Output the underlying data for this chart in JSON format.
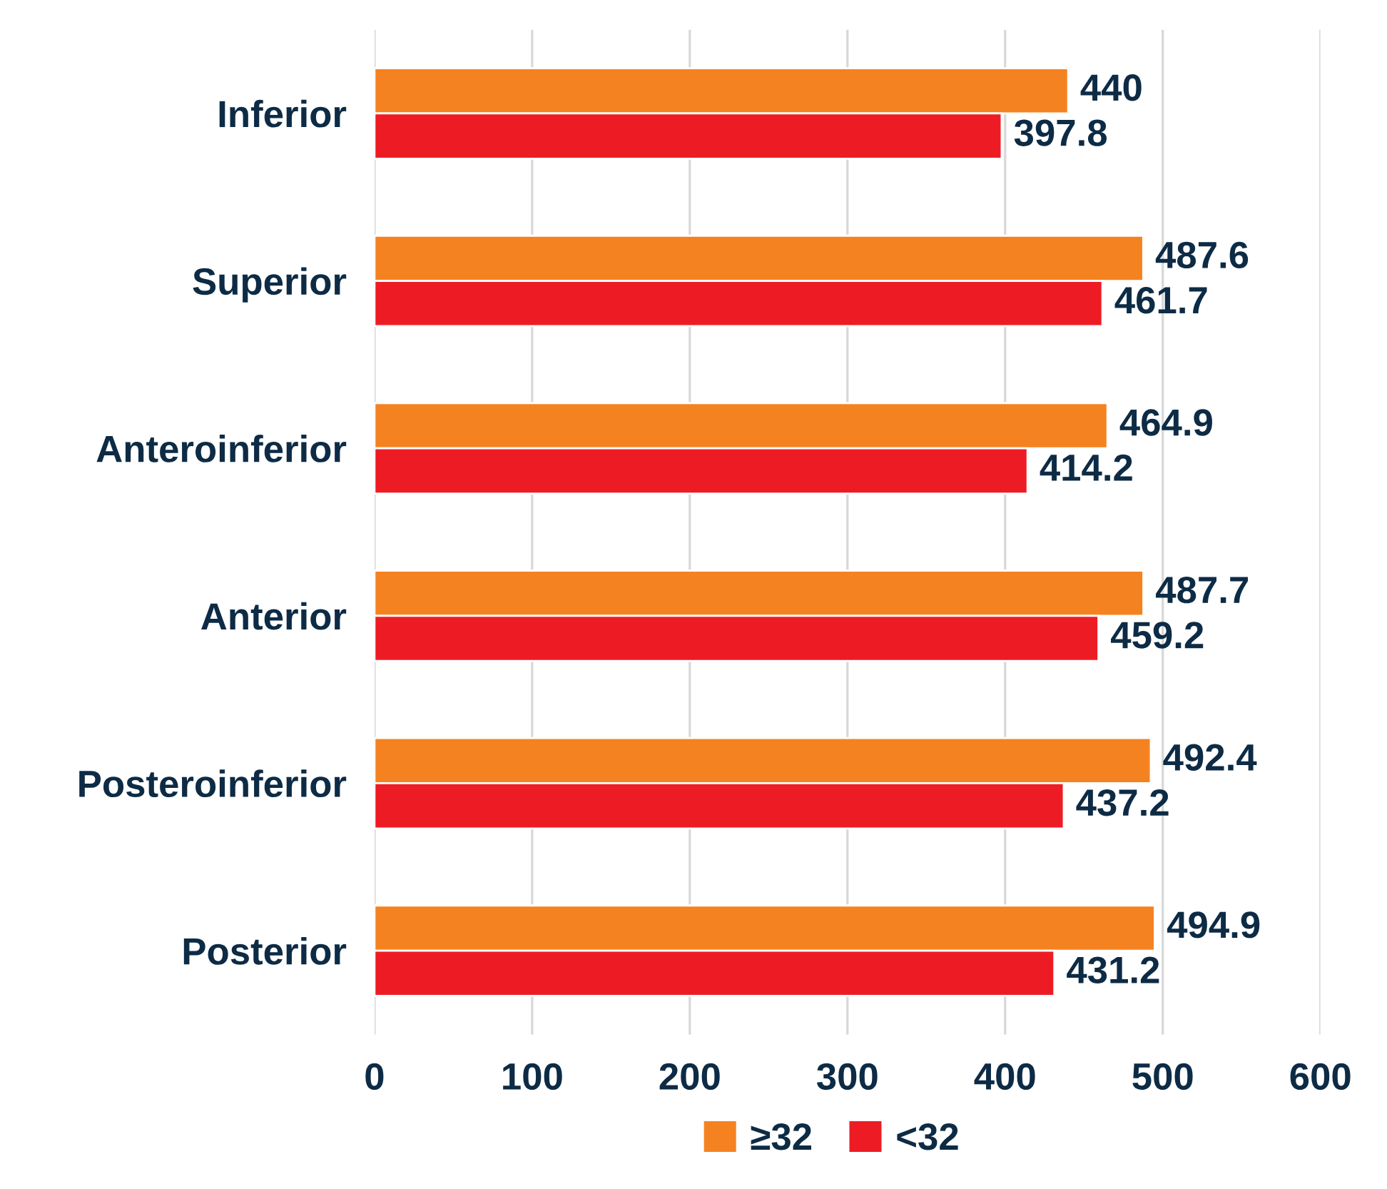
{
  "chart_data": {
    "type": "bar",
    "orientation": "horizontal",
    "categories": [
      "Inferior",
      "Superior",
      "Anteroinferior",
      "Anterior",
      "Posteroinferior",
      "Posterior"
    ],
    "series": [
      {
        "name": "≥32",
        "color": "#f58220",
        "values": [
          440,
          487.6,
          464.9,
          487.7,
          492.4,
          494.9
        ]
      },
      {
        "name": "<32",
        "color": "#ed1c24",
        "values": [
          397.8,
          461.7,
          414.2,
          459.2,
          437.2,
          431.2
        ]
      }
    ],
    "xlim": [
      0,
      600
    ],
    "xticks": [
      0,
      100,
      200,
      300,
      400,
      500,
      600
    ],
    "grid": "x",
    "legend": "bottom",
    "data_labels": true
  }
}
